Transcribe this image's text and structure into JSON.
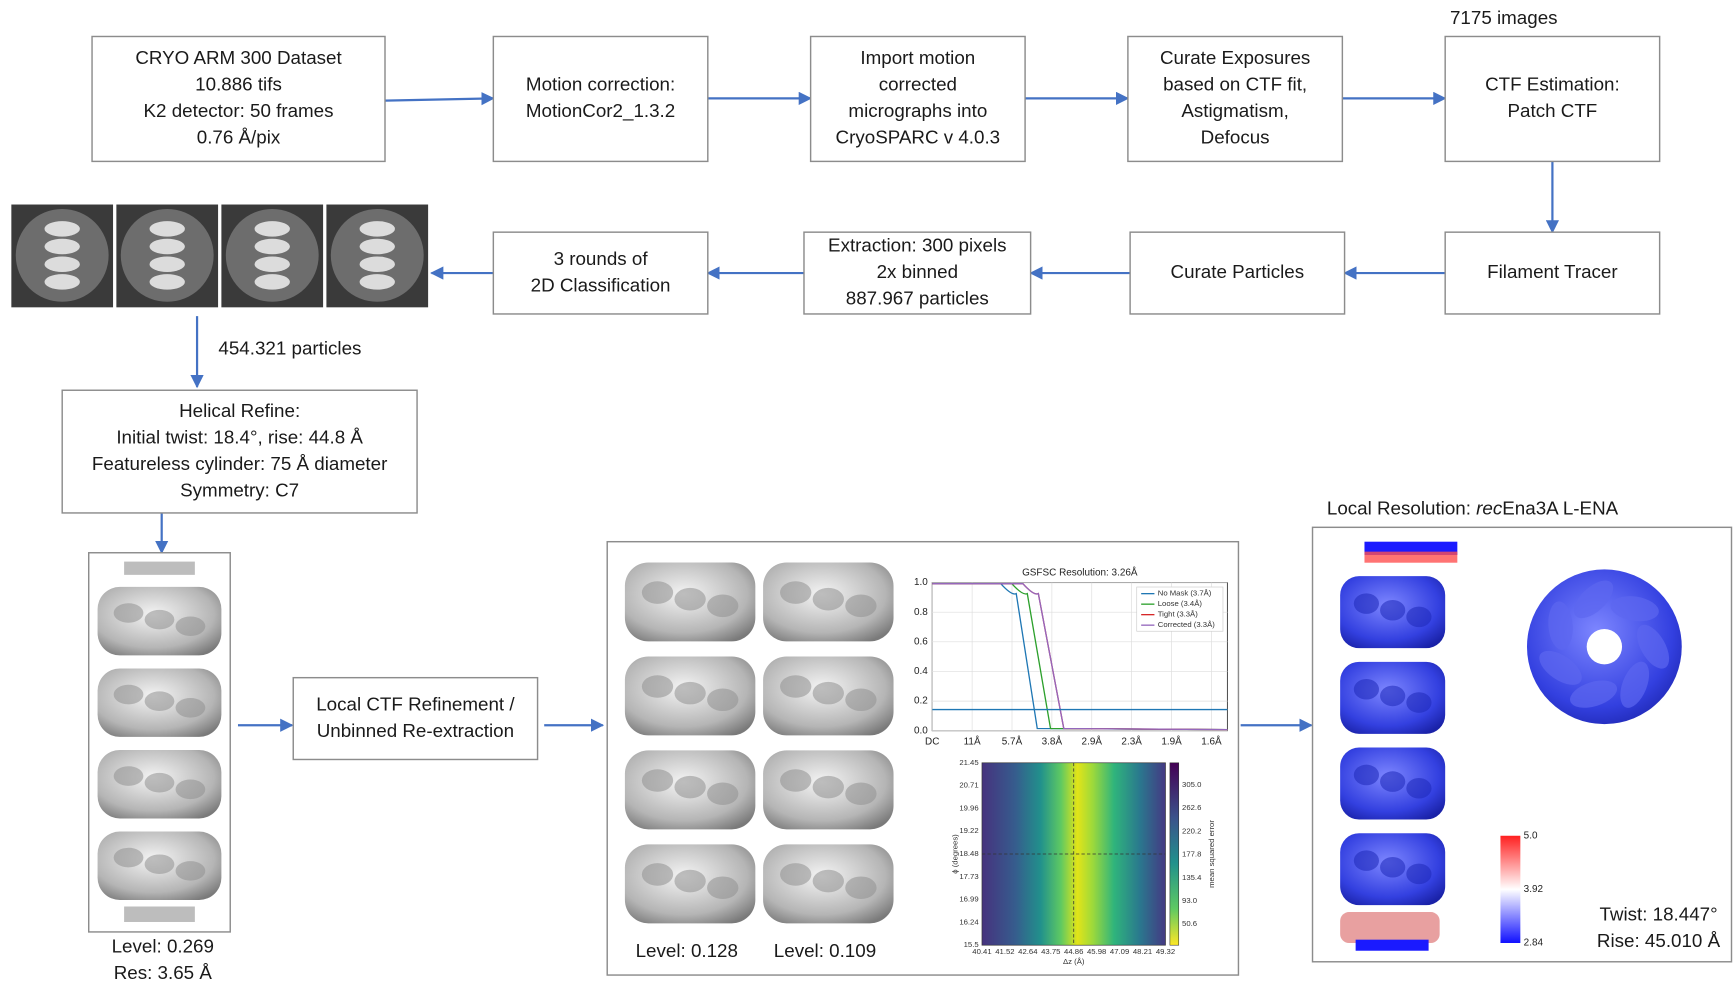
{
  "nodes": [
    {
      "lines": [
        "CRYO ARM 300 Dataset",
        "10.886 tifs",
        "K2 detector: 50 frames",
        "0.76 Å/pix"
      ]
    },
    {
      "lines": [
        "Motion correction:",
        "MotionCor2_1.3.2"
      ]
    },
    {
      "lines": [
        "Import motion",
        "corrected",
        "micrographs into",
        "CryoSPARC v 4.0.3"
      ]
    },
    {
      "lines": [
        "Curate Exposures",
        "based on CTF fit,",
        "Astigmatism,",
        "Defocus"
      ]
    },
    {
      "lines": [
        "CTF Estimation:",
        "Patch CTF"
      ]
    },
    {
      "lines": [
        "Filament Tracer"
      ]
    },
    {
      "lines": [
        "Curate Particles"
      ]
    },
    {
      "lines": [
        "Extraction: 300 pixels",
        "2x binned",
        "887.967 particles"
      ]
    },
    {
      "lines": [
        "3 rounds of",
        "2D Classification"
      ]
    },
    {
      "lines": [
        "Helical Refine:",
        "Initial twist: 18.4°, rise: 44.8 Å",
        "Featureless cylinder: 75 Å diameter",
        "Symmetry: C7"
      ]
    },
    {
      "lines": [
        "Local CTF Refinement /",
        "Unbinned Re-extraction"
      ]
    }
  ],
  "annotations": {
    "images_count": "7175 images",
    "particles": "454.321 particles"
  },
  "initial_map": {
    "level": "Level: 0.269",
    "resolution": "Res: 3.65 Å"
  },
  "refined_maps": {
    "levels": [
      "Level: 0.128",
      "Level: 0.109"
    ]
  },
  "fsc_plot": {
    "title": "GSFSC Resolution: 3.26Å",
    "legend": [
      "No Mask (3.7Å)",
      "Loose (3.4Å)",
      "Tight (3.3Å)",
      "Corrected (3.3Å)"
    ],
    "yticks": [
      "0.0",
      "0.2",
      "0.4",
      "0.6",
      "0.8",
      "1.0"
    ],
    "xticks": [
      "DC",
      "11Å",
      "5.7Å",
      "3.8Å",
      "2.9Å",
      "2.3Å",
      "1.9Å",
      "1.6Å"
    ]
  },
  "heatmap": {
    "y_label": "ϕ (degrees)",
    "x_label": "Δz (Å)",
    "colorbar_label": "mean squared error",
    "yticks": [
      "21.45",
      "20.71",
      "19.96",
      "19.22",
      "18.48",
      "17.73",
      "16.99",
      "16.24",
      "15.5"
    ],
    "xticks": [
      "40.41",
      "41.52",
      "42.64",
      "43.75",
      "44.86",
      "45.98",
      "47.09",
      "48.21",
      "49.32"
    ],
    "cticks": [
      "305.0",
      "262.6",
      "220.2",
      "177.8",
      "135.4",
      "93.0",
      "50.6"
    ]
  },
  "local_resolution": {
    "title": "Local Resolution: ",
    "title_italic": "rec",
    "title_rest": "Ena3A L-ENA",
    "scale": [
      "5.0",
      "3.92",
      "2.84"
    ],
    "twist": "Twist: 18.447°",
    "rise": "Rise: 45.010 Å"
  }
}
